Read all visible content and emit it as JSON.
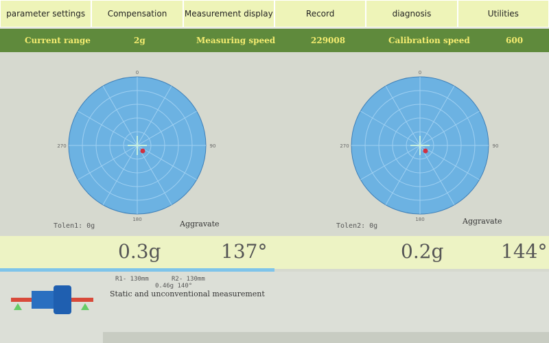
{
  "tabs": [
    "parameter settings",
    "Compensation",
    "Measurement display",
    "Record",
    "diagnosis",
    "Utilities"
  ],
  "status": {
    "current_range_label": "Current range",
    "current_range": "2g",
    "measuring_speed_label": "Measuring speed",
    "measuring_speed": "229008",
    "calibration_speed_label": "Calibration speed",
    "calibration_speed": "600"
  },
  "plots": [
    {
      "top": "0",
      "right": "90",
      "bottom": "180",
      "left": "270",
      "tolerance": "Tolen1: 0g",
      "status": "Aggravate",
      "magnitude": "0.3g",
      "angle": "137°"
    },
    {
      "top": "0",
      "right": "90",
      "bottom": "180",
      "left": "270",
      "tolerance": "Tolen2: 0g",
      "status": "Aggravate",
      "magnitude": "0.2g",
      "angle": "144°"
    }
  ],
  "footer": {
    "r1": "R1- 130mm",
    "r2": "R2- 130mm",
    "result": "0.46g 140°",
    "mode": "Static and unconventional measurement"
  }
}
